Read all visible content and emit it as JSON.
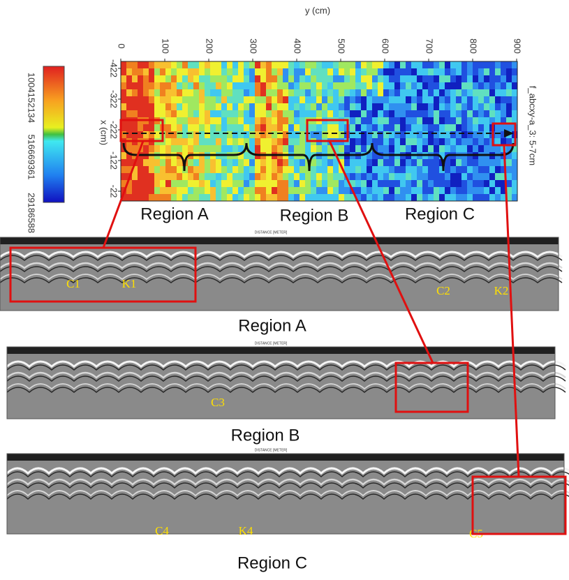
{
  "heatmap": {
    "y_axis_label": "y (cm)",
    "x_axis_label": "x (cm)",
    "y_ticks": [
      "0",
      "100",
      "200",
      "300",
      "400",
      "500",
      "600",
      "700",
      "800",
      "900"
    ],
    "x_ticks": [
      "-422",
      "-322",
      "-222",
      "-122",
      "-22"
    ],
    "colorbar_labels": [
      "1004152134",
      "516669361",
      "29186588"
    ],
    "side_label": "f_abcxy-a_3: 5-7cm",
    "regions": [
      "Region A",
      "Region B",
      "Region C"
    ]
  },
  "radargrams": [
    {
      "caption": "Region A",
      "axis_title": "DISTANCE [METER]",
      "labels": [
        "C1",
        "K1",
        "C2",
        "K2"
      ]
    },
    {
      "caption": "Region B",
      "axis_title": "DISTANCE [METER]",
      "labels": [
        "C3"
      ]
    },
    {
      "caption": "Region C",
      "axis_title": "DISTANCE [METER]",
      "labels": [
        "C4",
        "K4",
        "C5"
      ]
    }
  ]
}
